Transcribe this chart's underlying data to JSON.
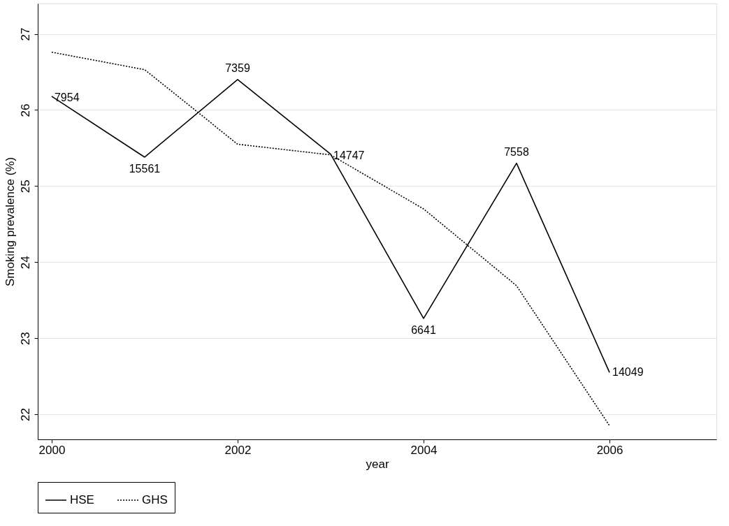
{
  "chart_data": {
    "type": "line",
    "xlabel": "year",
    "ylabel": "Smoking prevalence (%)",
    "x": [
      2000,
      2001,
      2002,
      2003,
      2004,
      2005,
      2006
    ],
    "series": [
      {
        "name": "HSE",
        "color": "#000000",
        "line_style": "solid",
        "values": [
          26.18,
          25.38,
          26.4,
          25.42,
          23.26,
          25.3,
          22.55
        ]
      },
      {
        "name": "GHS",
        "color": "#000000",
        "line_style": "dotted",
        "values": [
          26.76,
          26.53,
          25.55,
          25.41,
          24.7,
          23.69,
          21.85
        ]
      }
    ],
    "annotations": [
      {
        "text": "7954",
        "x": 2000,
        "y": 26.18
      },
      {
        "text": "15561",
        "x": 2001,
        "y": 25.38
      },
      {
        "text": "7359",
        "x": 2002,
        "y": 26.4
      },
      {
        "text": "14747",
        "x": 2003,
        "y": 25.42
      },
      {
        "text": "6641",
        "x": 2004,
        "y": 23.26
      },
      {
        "text": "7558",
        "x": 2005,
        "y": 25.3
      },
      {
        "text": "14049",
        "x": 2006,
        "y": 22.55
      }
    ],
    "xlim": [
      1999.85,
      2007.15
    ],
    "xticks": [
      2000,
      2002,
      2004,
      2006
    ],
    "ylim": [
      21.67,
      27.4
    ],
    "yticks": [
      22,
      23,
      24,
      25,
      26,
      27
    ],
    "grid": "y",
    "legend": "bottom",
    "marker": "none"
  }
}
